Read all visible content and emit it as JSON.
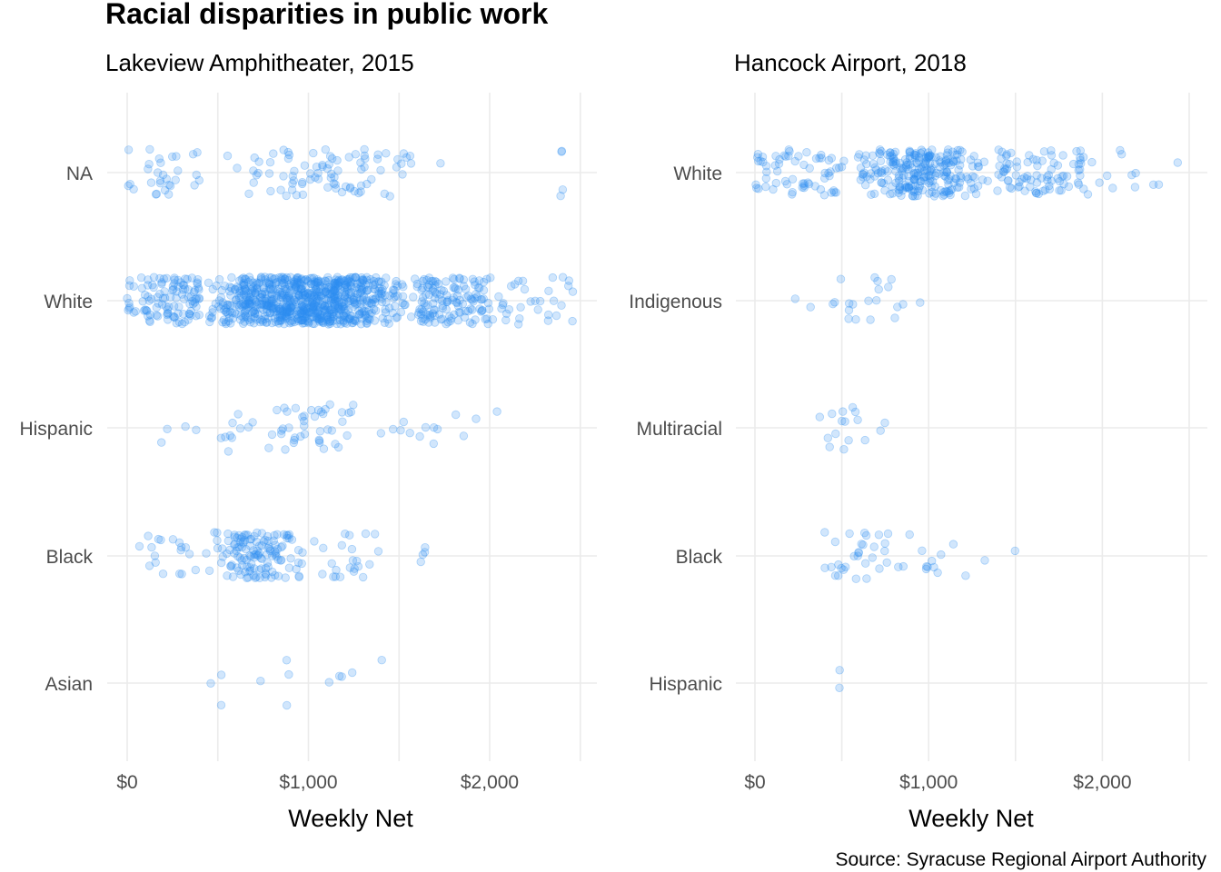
{
  "title": "Racial disparities in public work",
  "caption": "Source: Syracuse Regional Airport Authority",
  "colors": {
    "point": "#2E8FF0",
    "grid": "#EBEBEB",
    "tick_text": "#4D4D4D"
  },
  "chart_data": [
    {
      "type": "scatter",
      "subtitle": "Lakeview Amphitheater, 2015",
      "xlabel": "Weekly Net",
      "ylabel": "",
      "xlim": [
        0,
        2500
      ],
      "x_ticks": [
        0,
        1000,
        2000
      ],
      "x_tick_labels": [
        "$0",
        "$1,000",
        "$2,000"
      ],
      "grid": true,
      "legend": "none",
      "categories": [
        "NA",
        "White",
        "Hispanic",
        "Black",
        "Asian"
      ],
      "groups": [
        {
          "name": "NA",
          "count": 120,
          "dist": [
            [
              0,
              400,
              0.25
            ],
            [
              400,
              1800,
              0.72
            ],
            [
              2380,
              2420,
              0.03
            ]
          ]
        },
        {
          "name": "White",
          "count": 1100,
          "dist": [
            [
              0,
              400,
              0.1
            ],
            [
              400,
              1600,
              0.75
            ],
            [
              1600,
              2000,
              0.12
            ],
            [
              2000,
              2480,
              0.03
            ]
          ]
        },
        {
          "name": "Hispanic",
          "count": 70,
          "dist": [
            [
              150,
              700,
              0.2
            ],
            [
              700,
              1300,
              0.6
            ],
            [
              1300,
              2050,
              0.2
            ]
          ]
        },
        {
          "name": "Black",
          "count": 180,
          "dist": [
            [
              50,
              400,
              0.1
            ],
            [
              400,
              1000,
              0.75
            ],
            [
              1000,
              1400,
              0.13
            ],
            [
              1600,
              1650,
              0.02
            ]
          ]
        },
        {
          "name": "Asian",
          "count": 12,
          "dist": [
            [
              200,
              1450,
              1
            ]
          ]
        }
      ]
    },
    {
      "type": "scatter",
      "subtitle": "Hancock Airport, 2018",
      "xlabel": "Weekly Net",
      "ylabel": "",
      "xlim": [
        0,
        2500
      ],
      "x_ticks": [
        0,
        1000,
        2000
      ],
      "x_tick_labels": [
        "$0",
        "$1,000",
        "$2,000"
      ],
      "grid": true,
      "legend": "none",
      "categories": [
        "White",
        "Indigenous",
        "Multiracial",
        "Black",
        "Hispanic"
      ],
      "groups": [
        {
          "name": "White",
          "count": 420,
          "dist": [
            [
              0,
              500,
              0.15
            ],
            [
              500,
              1400,
              0.62
            ],
            [
              1400,
              1900,
              0.2
            ],
            [
              1900,
              2480,
              0.03
            ]
          ]
        },
        {
          "name": "Indigenous",
          "count": 22,
          "dist": [
            [
              200,
              1000,
              1
            ]
          ]
        },
        {
          "name": "Multiracial",
          "count": 16,
          "dist": [
            [
              150,
              850,
              1
            ]
          ]
        },
        {
          "name": "Black",
          "count": 45,
          "dist": [
            [
              150,
              1200,
              0.93
            ],
            [
              1200,
              1600,
              0.07
            ]
          ]
        },
        {
          "name": "Hispanic",
          "count": 2,
          "dist": [
            [
              480,
              490,
              1
            ]
          ]
        }
      ]
    }
  ]
}
